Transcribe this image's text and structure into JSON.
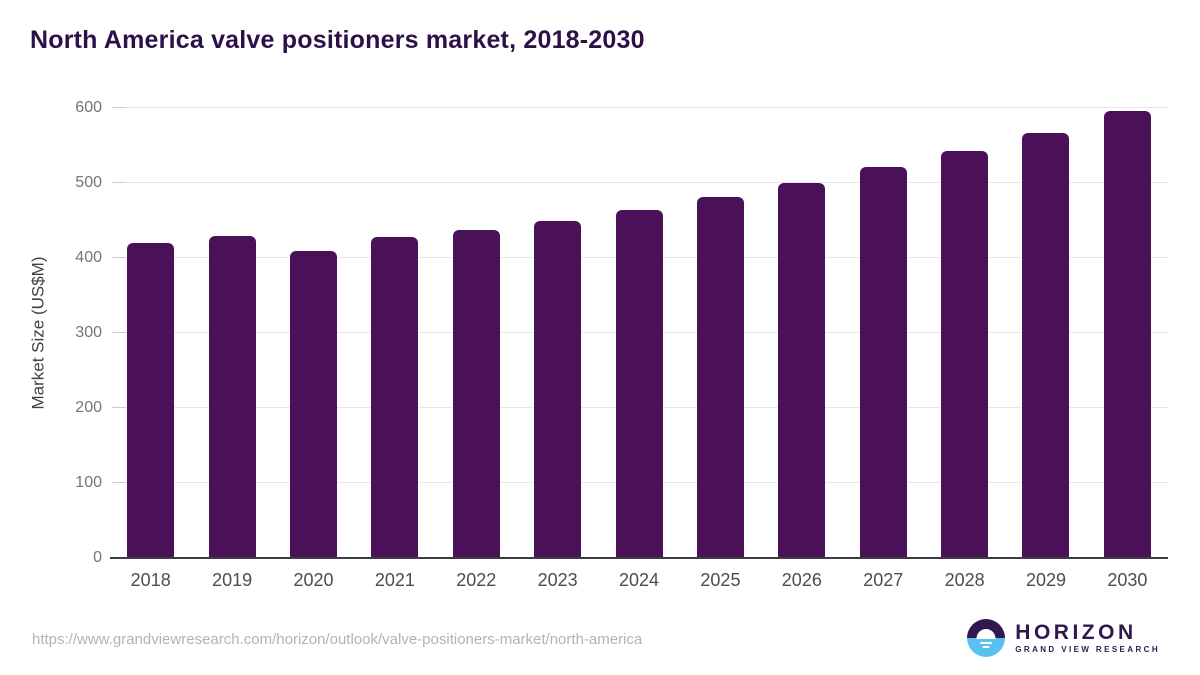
{
  "header": {
    "title": "North America valve positioners market, 2018-2030"
  },
  "chart_data": {
    "type": "bar",
    "title": "North America valve positioners market, 2018-2030",
    "categories": [
      "2018",
      "2019",
      "2020",
      "2021",
      "2022",
      "2023",
      "2024",
      "2025",
      "2026",
      "2027",
      "2028",
      "2029",
      "2030"
    ],
    "values": [
      420,
      430,
      410,
      428,
      438,
      450,
      464,
      481,
      500,
      521,
      543,
      567,
      596
    ],
    "xlabel": "",
    "ylabel": "Market Size (US$M)",
    "ylim": [
      0,
      600
    ],
    "yticks": [
      0,
      100,
      200,
      300,
      400,
      500,
      600
    ],
    "grid": true,
    "legend_position": "none",
    "bar_color": "#4a1158"
  },
  "footer": {
    "source_url": "https://www.grandviewresearch.com/horizon/outlook/valve-positioners-market/north-america",
    "logo_title": "HORIZON",
    "logo_subtitle": "GRAND VIEW RESEARCH"
  },
  "colors": {
    "title": "#2d1048",
    "bar": "#4a1158",
    "grid": "#e8e8e8",
    "tick_mark": "#cccccc",
    "axis_line": "#3d3d3d",
    "tick_label": "#757575",
    "x_label": "#4d4d4d",
    "y_axis_title": "#424242",
    "url": "#b3b3b3",
    "logo_purple": "#31184d",
    "logo_blue": "#5ac1ee"
  }
}
